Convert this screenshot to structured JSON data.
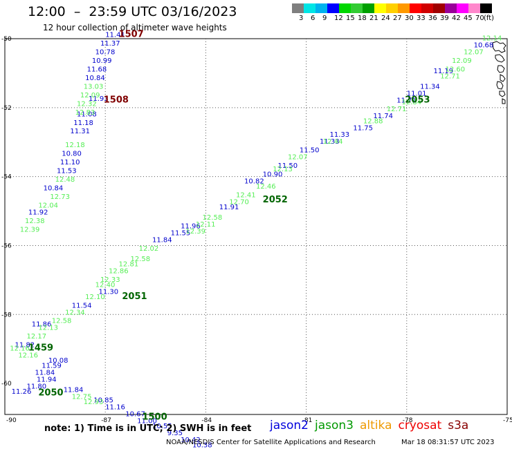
{
  "header": {
    "title": "12:00  –  23:59 UTC 03/16/2023",
    "subtitle": "12 hour collection of altimeter wave heights"
  },
  "legend": {
    "swatches": [
      "#7f7f7f",
      "#00e5e5",
      "#00b2ee",
      "#0000ff",
      "#00d700",
      "#33cc33",
      "#00a000",
      "#ffff00",
      "#ffd000",
      "#ff9900",
      "#ff0000",
      "#d00000",
      "#a00000",
      "#990099",
      "#ff00ff",
      "#ff88cc",
      "#000000"
    ],
    "labels": [
      "3",
      "6",
      "9",
      "12",
      "15",
      "18",
      "21",
      "24",
      "27",
      "30",
      "33",
      "36",
      "39",
      "42",
      "45",
      "70",
      "(ft)"
    ]
  },
  "axes": {
    "x_ticks": [
      "-90",
      "-87",
      "-84",
      "-81",
      "-78",
      "-75"
    ],
    "y_ticks": [
      "-50",
      "-52",
      "-54",
      "-56",
      "-58",
      "-60"
    ]
  },
  "tracks": [
    {
      "color": "#0000cc",
      "pts": [
        {
          "lon": -87.5,
          "lat": -51.8,
          "v": "11.93"
        },
        {
          "lon": -87.85,
          "lat": -52.25,
          "v": "11.08"
        },
        {
          "lon": -87.95,
          "lat": -52.5,
          "v": "11.18"
        },
        {
          "lon": -88.05,
          "lat": -52.75,
          "v": "11.31"
        },
        {
          "lon": -88.3,
          "lat": -53.4,
          "v": "10.80"
        },
        {
          "lon": -88.35,
          "lat": -53.65,
          "v": "11.10"
        },
        {
          "lon": -88.45,
          "lat": -53.9,
          "v": "11.53"
        },
        {
          "lon": -88.85,
          "lat": -54.4,
          "v": "10.84"
        },
        {
          "lon": -89.3,
          "lat": -55.1,
          "v": "11.92"
        },
        {
          "lon": -87.0,
          "lat": -49.95,
          "v": "11.41"
        },
        {
          "lon": -87.15,
          "lat": -50.2,
          "v": "11.37"
        },
        {
          "lon": -87.3,
          "lat": -50.45,
          "v": "10.78"
        },
        {
          "lon": -87.4,
          "lat": -50.7,
          "v": "10.99"
        },
        {
          "lon": -87.55,
          "lat": -50.95,
          "v": "11.68"
        },
        {
          "lon": -87.6,
          "lat": -51.2,
          "v": "10.84"
        }
      ]
    },
    {
      "color": "#55ee55",
      "pts": [
        {
          "lon": -87.65,
          "lat": -51.45,
          "v": "13.03"
        },
        {
          "lon": -87.75,
          "lat": -51.7,
          "v": "12.09"
        },
        {
          "lon": -87.85,
          "lat": -51.95,
          "v": "12.32"
        },
        {
          "lon": -87.9,
          "lat": -52.2,
          "v": "12.83"
        },
        {
          "lon": -88.2,
          "lat": -53.15,
          "v": "12.18"
        },
        {
          "lon": -88.5,
          "lat": -54.15,
          "v": "12.48"
        },
        {
          "lon": -88.65,
          "lat": -54.65,
          "v": "12.73"
        },
        {
          "lon": -89.0,
          "lat": -54.9,
          "v": "12.04"
        },
        {
          "lon": -89.4,
          "lat": -55.35,
          "v": "12.38"
        },
        {
          "lon": -89.55,
          "lat": -55.6,
          "v": "12.39"
        }
      ]
    },
    {
      "color": "#0000cc",
      "pts": [
        {
          "lon": -76.0,
          "lat": -50.25,
          "v": "10.68"
        },
        {
          "lon": -77.2,
          "lat": -51.0,
          "v": "11.19"
        },
        {
          "lon": -77.6,
          "lat": -51.45,
          "v": "11.34"
        },
        {
          "lon": -78.0,
          "lat": -51.65,
          "v": "11.01"
        },
        {
          "lon": -78.3,
          "lat": -51.85,
          "v": "11.71"
        },
        {
          "lon": -79.0,
          "lat": -52.3,
          "v": "11.74"
        },
        {
          "lon": -79.6,
          "lat": -52.65,
          "v": "11.75"
        },
        {
          "lon": -80.3,
          "lat": -52.85,
          "v": "11.33"
        },
        {
          "lon": -80.6,
          "lat": -53.05,
          "v": "11.33"
        },
        {
          "lon": -81.2,
          "lat": -53.3,
          "v": "11.50"
        },
        {
          "lon": -81.85,
          "lat": -53.75,
          "v": "11.50"
        },
        {
          "lon": -82.3,
          "lat": -54.0,
          "v": "10.90"
        },
        {
          "lon": -82.85,
          "lat": -54.2,
          "v": "10.82"
        },
        {
          "lon": -83.6,
          "lat": -54.95,
          "v": "11.91"
        },
        {
          "lon": -84.75,
          "lat": -55.5,
          "v": "11.96"
        },
        {
          "lon": -85.05,
          "lat": -55.7,
          "v": "11.55"
        },
        {
          "lon": -85.6,
          "lat": -55.9,
          "v": "11.84"
        },
        {
          "lon": -87.2,
          "lat": -57.4,
          "v": "11.30"
        },
        {
          "lon": -88.0,
          "lat": -57.8,
          "v": "11.54"
        },
        {
          "lon": -89.2,
          "lat": -58.35,
          "v": "11.86"
        },
        {
          "lon": -89.7,
          "lat": -58.95,
          "v": "11.82"
        }
      ]
    },
    {
      "color": "#55ee55",
      "pts": [
        {
          "lon": -75.75,
          "lat": -50.05,
          "v": "12.14"
        },
        {
          "lon": -76.3,
          "lat": -50.45,
          "v": "12.07"
        },
        {
          "lon": -76.65,
          "lat": -50.7,
          "v": "12.09"
        },
        {
          "lon": -76.85,
          "lat": -50.95,
          "v": "12.60"
        },
        {
          "lon": -77.0,
          "lat": -51.15,
          "v": "12.71"
        },
        {
          "lon": -78.15,
          "lat": -51.9,
          "v": "12.84"
        },
        {
          "lon": -78.6,
          "lat": -52.1,
          "v": "12.71"
        },
        {
          "lon": -79.3,
          "lat": -52.45,
          "v": "12.88"
        },
        {
          "lon": -80.5,
          "lat": -53.05,
          "v": "12.44"
        },
        {
          "lon": -81.55,
          "lat": -53.5,
          "v": "12.07"
        },
        {
          "lon": -82.0,
          "lat": -53.85,
          "v": "12.13"
        },
        {
          "lon": -82.5,
          "lat": -54.35,
          "v": "12.46"
        },
        {
          "lon": -83.1,
          "lat": -54.6,
          "v": "12.41"
        },
        {
          "lon": -83.3,
          "lat": -54.8,
          "v": "12.70"
        },
        {
          "lon": -84.1,
          "lat": -55.25,
          "v": "12.58"
        },
        {
          "lon": -84.3,
          "lat": -55.45,
          "v": "12.11"
        },
        {
          "lon": -84.6,
          "lat": -55.65,
          "v": "12.39"
        },
        {
          "lon": -86.0,
          "lat": -56.15,
          "v": "12.02"
        },
        {
          "lon": -86.25,
          "lat": -56.45,
          "v": "12.58"
        },
        {
          "lon": -86.6,
          "lat": -56.6,
          "v": "12.81"
        },
        {
          "lon": -86.9,
          "lat": -56.8,
          "v": "12.86"
        },
        {
          "lon": -87.15,
          "lat": -57.05,
          "v": "12.33"
        },
        {
          "lon": -87.3,
          "lat": -57.2,
          "v": "12.40"
        },
        {
          "lon": -87.6,
          "lat": -57.55,
          "v": "12.10"
        },
        {
          "lon": -88.2,
          "lat": -58.0,
          "v": "12.34"
        },
        {
          "lon": -88.6,
          "lat": -58.25,
          "v": "12.58"
        },
        {
          "lon": -89.0,
          "lat": -58.45,
          "v": "12.13"
        },
        {
          "lon": -89.35,
          "lat": -58.7,
          "v": "12.17"
        },
        {
          "lon": -89.85,
          "lat": -59.05,
          "v": "12.16"
        },
        {
          "lon": -89.6,
          "lat": -59.25,
          "v": "12.16"
        }
      ]
    },
    {
      "color": "#0000cc",
      "pts": [
        {
          "lon": -88.7,
          "lat": -59.4,
          "v": "10.08"
        },
        {
          "lon": -88.9,
          "lat": -59.55,
          "v": "11.59"
        },
        {
          "lon": -89.1,
          "lat": -59.75,
          "v": "11.84"
        },
        {
          "lon": -89.05,
          "lat": -59.95,
          "v": "11.94"
        },
        {
          "lon": -89.35,
          "lat": -60.15,
          "v": "11.80"
        },
        {
          "lon": -89.8,
          "lat": -60.3,
          "v": "11.26"
        },
        {
          "lon": -88.25,
          "lat": -60.25,
          "v": "11.84"
        },
        {
          "lon": -87.35,
          "lat": -60.55,
          "v": "10.85"
        },
        {
          "lon": -87.0,
          "lat": -60.75,
          "v": "11.16"
        },
        {
          "lon": -86.4,
          "lat": -60.95,
          "v": "10.67"
        },
        {
          "lon": -86.05,
          "lat": -61.15,
          "v": "11.00"
        },
        {
          "lon": -85.6,
          "lat": -61.3,
          "v": "10.55"
        },
        {
          "lon": -85.15,
          "lat": -61.5,
          "v": "9.35"
        },
        {
          "lon": -84.75,
          "lat": -61.7,
          "v": "10.42"
        },
        {
          "lon": -84.4,
          "lat": -61.85,
          "v": "10.38"
        }
      ]
    },
    {
      "color": "#55ee55",
      "pts": [
        {
          "lon": -88.0,
          "lat": -60.45,
          "v": "12.75"
        },
        {
          "lon": -87.65,
          "lat": -60.6,
          "v": "12.93"
        }
      ]
    }
  ],
  "pass_labels": [
    {
      "text": "1507",
      "color": "#800000",
      "lon": -86.6,
      "lat": -49.95
    },
    {
      "text": "1508",
      "color": "#800000",
      "lon": -87.05,
      "lat": -51.85
    },
    {
      "text": "2053",
      "color": "#006400",
      "lon": -78.05,
      "lat": -51.85
    },
    {
      "text": "2052",
      "color": "#006400",
      "lon": -82.3,
      "lat": -54.75
    },
    {
      "text": "2051",
      "color": "#006400",
      "lon": -86.5,
      "lat": -57.55
    },
    {
      "text": "1459",
      "color": "#006400",
      "lon": -89.3,
      "lat": -59.05
    },
    {
      "text": "2050",
      "color": "#006400",
      "lon": -89.0,
      "lat": -60.35
    },
    {
      "text": "1500",
      "color": "#006400",
      "lon": -85.9,
      "lat": -61.05
    }
  ],
  "note": "note:  1) Time is in UTC;  2) SWH is in feet",
  "satellites": [
    {
      "name": "jason2",
      "color": "#0000dd"
    },
    {
      "name": "jason3",
      "color": "#009900"
    },
    {
      "name": "altika",
      "color": "#ee9900"
    },
    {
      "name": "cryosat",
      "color": "#ee0000"
    },
    {
      "name": "s3a",
      "color": "#880000"
    }
  ],
  "footer": {
    "credit": "NOAA/NESDIS Center for Satellite Applications and Research",
    "timestamp": "Mar 18 08:31:57 UTC 2023"
  }
}
